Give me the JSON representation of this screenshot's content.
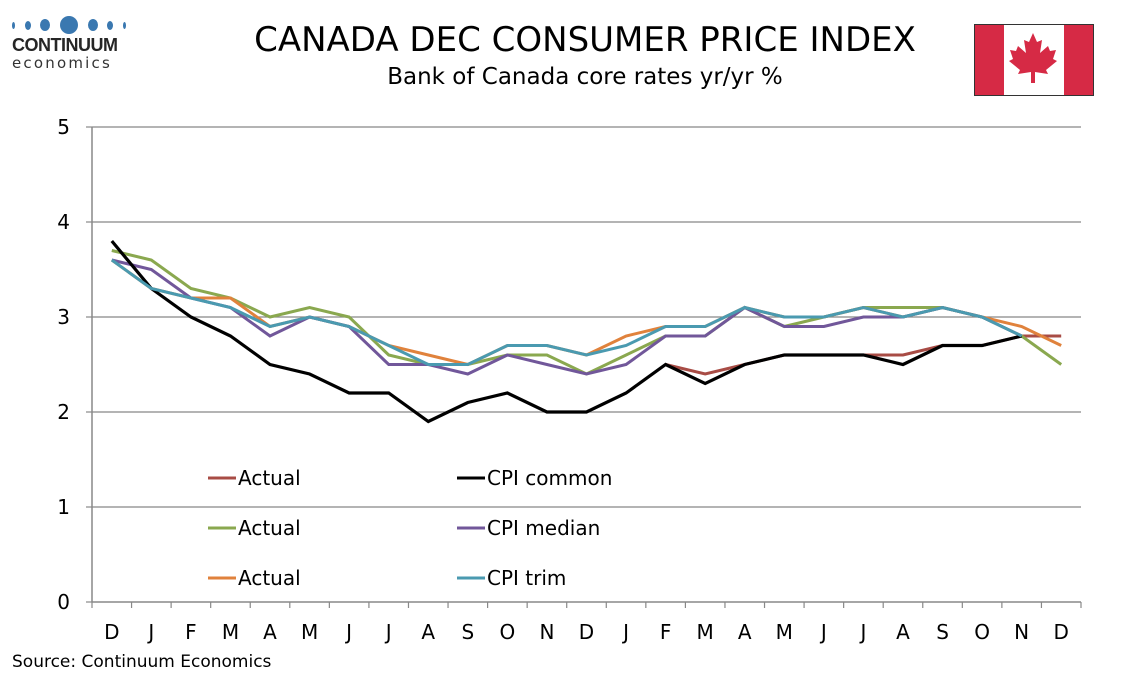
{
  "header": {
    "logo_brand": "CONTINUUM",
    "logo_sub": "economics",
    "title": "CANADA DEC CONSUMER PRICE INDEX",
    "subtitle": "Bank of Canada core rates yr/yr %",
    "flag_icon": "canada-flag-icon"
  },
  "footer": {
    "source": "Source: Continuum Economics"
  },
  "colors": {
    "red": "#a84c45",
    "black": "#000000",
    "green": "#8aa84f",
    "purple": "#71579a",
    "orange": "#e0823c",
    "teal": "#4a9ab0",
    "grid": "#888888"
  },
  "chart_data": {
    "type": "line",
    "title": "CANADA DEC CONSUMER PRICE INDEX",
    "subtitle": "Bank of Canada core rates yr/yr %",
    "xlabel": "",
    "ylabel": "",
    "ylim": [
      0,
      5
    ],
    "yticks": [
      0,
      1,
      2,
      3,
      4,
      5
    ],
    "grid": true,
    "legend_placement": "bottom-left inside plot",
    "categories": [
      "D",
      "J",
      "F",
      "M",
      "A",
      "M",
      "J",
      "J",
      "A",
      "S",
      "O",
      "N",
      "D",
      "J",
      "F",
      "M",
      "A",
      "M",
      "J",
      "J",
      "A",
      "S",
      "O",
      "N",
      "D"
    ],
    "series": [
      {
        "name": "Actual",
        "color": "#a84c45",
        "values": [
          null,
          null,
          null,
          null,
          null,
          null,
          null,
          null,
          null,
          null,
          null,
          null,
          null,
          null,
          2.5,
          2.4,
          2.5,
          2.6,
          2.6,
          2.6,
          2.6,
          2.7,
          2.7,
          2.8,
          2.8
        ]
      },
      {
        "name": "CPI common",
        "color": "#000000",
        "values": [
          3.8,
          3.3,
          3.0,
          2.8,
          2.5,
          2.4,
          2.2,
          2.2,
          1.9,
          2.1,
          2.2,
          2.0,
          2.0,
          2.2,
          2.5,
          2.3,
          2.5,
          2.6,
          2.6,
          2.6,
          2.5,
          2.7,
          2.7,
          2.8,
          null
        ]
      },
      {
        "name": "Actual",
        "color": "#8aa84f",
        "values": [
          3.7,
          3.6,
          3.3,
          3.2,
          3.0,
          3.1,
          3.0,
          2.6,
          2.5,
          2.5,
          2.6,
          2.6,
          2.4,
          2.6,
          2.8,
          2.8,
          3.1,
          2.9,
          3.0,
          3.1,
          3.1,
          3.1,
          3.0,
          2.8,
          2.5
        ]
      },
      {
        "name": "CPI median",
        "color": "#71579a",
        "values": [
          3.6,
          3.5,
          3.2,
          3.1,
          2.8,
          3.0,
          2.9,
          2.5,
          2.5,
          2.4,
          2.6,
          2.5,
          2.4,
          2.5,
          2.8,
          2.8,
          3.1,
          2.9,
          2.9,
          3.0,
          3.0,
          3.1,
          3.0,
          2.8,
          null
        ]
      },
      {
        "name": "Actual",
        "color": "#e0823c",
        "values": [
          3.6,
          3.3,
          3.2,
          3.2,
          2.9,
          3.0,
          2.9,
          2.7,
          2.6,
          2.5,
          2.7,
          2.7,
          2.6,
          2.8,
          2.9,
          2.9,
          3.1,
          3.0,
          3.0,
          3.1,
          3.0,
          3.1,
          3.0,
          2.9,
          2.7
        ]
      },
      {
        "name": "CPI trim",
        "color": "#4a9ab0",
        "values": [
          3.6,
          3.3,
          3.2,
          3.1,
          2.9,
          3.0,
          2.9,
          2.7,
          2.5,
          2.5,
          2.7,
          2.7,
          2.6,
          2.7,
          2.9,
          2.9,
          3.1,
          3.0,
          3.0,
          3.1,
          3.0,
          3.1,
          3.0,
          2.8,
          null
        ]
      }
    ],
    "draw_order": [
      0,
      2,
      4,
      3,
      1,
      5
    ],
    "legend": [
      {
        "label": "Actual",
        "series": 0
      },
      {
        "label": "CPI common",
        "series": 1
      },
      {
        "label": "Actual",
        "series": 2
      },
      {
        "label": "CPI median",
        "series": 3
      },
      {
        "label": "Actual",
        "series": 4
      },
      {
        "label": "CPI trim",
        "series": 5
      }
    ]
  }
}
